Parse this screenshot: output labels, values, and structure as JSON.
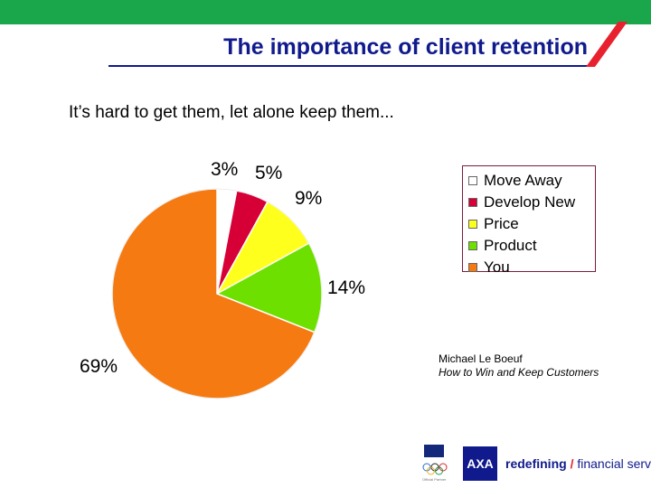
{
  "header": {
    "title": "The importance of client retention",
    "subtitle": "It’s hard to get them, let alone keep them..."
  },
  "chart_data": {
    "type": "pie",
    "title": "",
    "slices": [
      {
        "name": "Move Away",
        "value": 3,
        "label": "3%",
        "color": "#ffffff"
      },
      {
        "name": "Develop New",
        "value": 5,
        "label": "5%",
        "color": "#d60036"
      },
      {
        "name": "Price",
        "value": 9,
        "label": "9%",
        "color": "#ffff1e"
      },
      {
        "name": "Product",
        "value": 14,
        "label": "14%",
        "color": "#6ee000"
      },
      {
        "name": "You",
        "value": 69,
        "label": "69%",
        "color": "#f57a12"
      }
    ],
    "legend_placement": "right"
  },
  "credit": {
    "author": "Michael Le Boeuf",
    "book": "How to Win and Keep Customers"
  },
  "footer": {
    "sponsor": "Official Partner",
    "brand": "AXA",
    "tagline_bold": "redefining",
    "tagline_mark": "/",
    "tagline_rest": "financial services"
  }
}
